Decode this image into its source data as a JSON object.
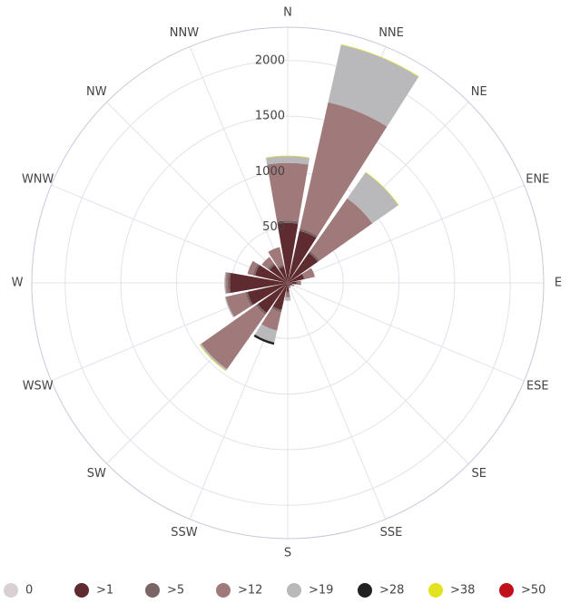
{
  "chart_data": {
    "type": "windrose",
    "categories": [
      "N",
      "NNE",
      "NE",
      "ENE",
      "E",
      "ESE",
      "SE",
      "SSE",
      "S",
      "SSW",
      "SW",
      "WSW",
      "W",
      "WNW",
      "NW",
      "NNW"
    ],
    "series": [
      {
        "name": "0",
        "color": "#d9d1d1",
        "values": [
          0,
          0,
          0,
          0,
          0,
          0,
          0,
          0,
          0,
          0,
          0,
          0,
          0,
          0,
          0,
          0
        ]
      },
      {
        "name": ">1",
        "color": "#5e2b30",
        "values": [
          540,
          480,
          330,
          150,
          80,
          40,
          30,
          30,
          80,
          250,
          330,
          370,
          520,
          300,
          200,
          150
        ]
      },
      {
        "name": ">5",
        "color": "#7b6466",
        "values": [
          20,
          20,
          20,
          10,
          10,
          5,
          5,
          5,
          10,
          20,
          20,
          20,
          20,
          20,
          20,
          20
        ]
      },
      {
        "name": ">12",
        "color": "#a07a7b",
        "values": [
          520,
          1165,
          580,
          90,
          30,
          15,
          5,
          15,
          40,
          170,
          600,
          180,
          20,
          50,
          65,
          160
        ]
      },
      {
        "name": ">19",
        "color": "#b9b9bc",
        "values": [
          60,
          530,
          285,
          0,
          0,
          0,
          0,
          0,
          30,
          110,
          15,
          10,
          10,
          0,
          0,
          0
        ]
      },
      {
        "name": ">28",
        "color": "#222222",
        "values": [
          0,
          0,
          0,
          0,
          0,
          0,
          0,
          0,
          0,
          20,
          0,
          0,
          0,
          0,
          0,
          0
        ]
      },
      {
        "name": ">38",
        "color": "#e2e21e",
        "values": [
          5,
          5,
          5,
          0,
          0,
          0,
          0,
          0,
          0,
          0,
          5,
          0,
          0,
          0,
          0,
          0
        ]
      },
      {
        "name": ">50",
        "color": "#c0101a",
        "values": [
          0,
          0,
          0,
          0,
          0,
          0,
          0,
          0,
          0,
          0,
          0,
          0,
          0,
          0,
          0,
          0
        ]
      }
    ],
    "ylim": [
      0,
      2300
    ],
    "yticks": [
      500,
      1000,
      1500,
      2000
    ],
    "grid": true
  }
}
